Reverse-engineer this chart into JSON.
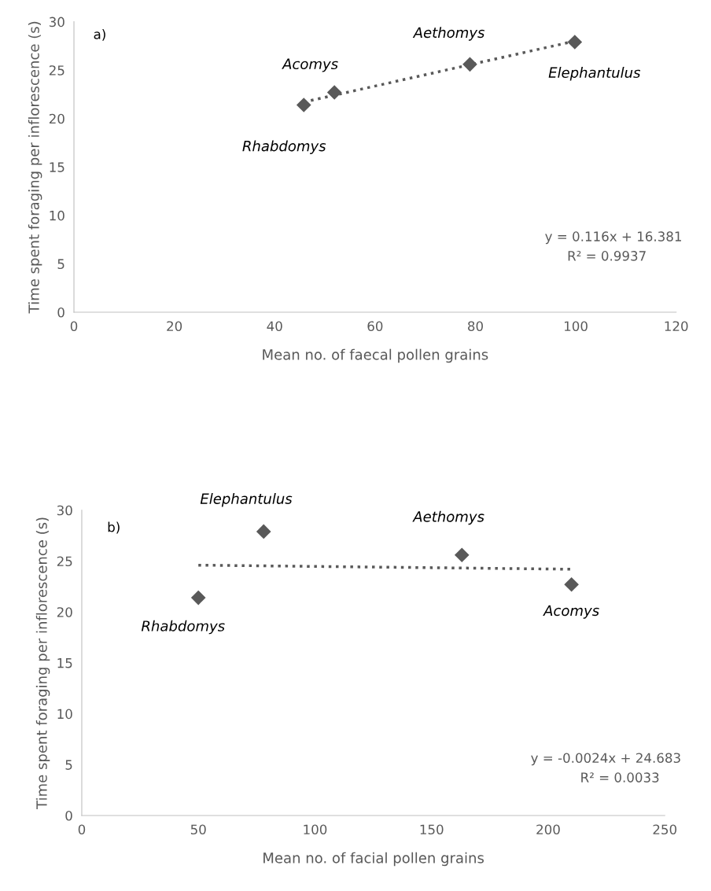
{
  "chart_data": [
    {
      "type": "scatter",
      "xlabel": "Mean no. of faecal pollen grains",
      "ylabel": "Time spent foraging per inflorescence (s)",
      "xlim": [
        0,
        120
      ],
      "xticks": [
        0,
        20,
        40,
        60,
        80,
        100,
        120
      ],
      "ylim": [
        0,
        30
      ],
      "yticks": [
        0,
        5,
        10,
        15,
        20,
        25,
        30
      ],
      "grid": false,
      "marker": "diamond",
      "series": [
        {
          "color": "#595959",
          "x": [
            45.8,
            51.9,
            78.9,
            99.8
          ],
          "values": [
            21.4,
            22.7,
            25.6,
            27.9
          ]
        },
        {
          "type": "line",
          "color": "#595959",
          "line_style": "dotted",
          "marker": "none",
          "x": [
            45.8,
            99.8
          ],
          "values": [
            21.7,
            28.0
          ]
        }
      ],
      "annotations": [
        "a)",
        "Rhabdomys",
        {
          "text": "Acomys",
          "x": 51.9,
          "y": 22.7
        },
        {
          "text": "Aethomys",
          "x": 78.9,
          "y": 25.6
        },
        {
          "text": "Elephantulus",
          "x": 99.8,
          "y": 27.9
        },
        "y = 0.116x + 16.381",
        "R² = 0.9937"
      ]
    },
    {
      "type": "scatter",
      "xlabel": "Mean no. of facial pollen grains",
      "ylabel": "Time spent foraging per inflorescence (s)",
      "xlim": [
        0,
        250
      ],
      "xticks": [
        0,
        50,
        100,
        150,
        200,
        250
      ],
      "ylim": [
        0,
        30
      ],
      "yticks": [
        0,
        5,
        10,
        15,
        20,
        25,
        30
      ],
      "grid": false,
      "marker": "diamond",
      "series": [
        {
          "color": "#595959",
          "x": [
            50,
            78,
            163,
            210
          ],
          "values": [
            21.4,
            27.9,
            25.6,
            22.7
          ]
        },
        {
          "type": "line",
          "color": "#595959",
          "line_style": "dotted",
          "marker": "none",
          "x": [
            50,
            210
          ],
          "values": [
            24.6,
            24.2
          ]
        }
      ],
      "annotations": [
        "b)",
        {
          "text": "Rhabdomys",
          "x": 50,
          "y": 21.4
        },
        {
          "text": "Elephantulus",
          "x": 78,
          "y": 27.9
        },
        {
          "text": "Aethomys",
          "x": 163,
          "y": 25.6
        },
        {
          "text": "Acomys",
          "x": 210,
          "y": 22.7
        },
        "y = -0.0024x + 24.683",
        "R² = 0.0033"
      ]
    }
  ]
}
